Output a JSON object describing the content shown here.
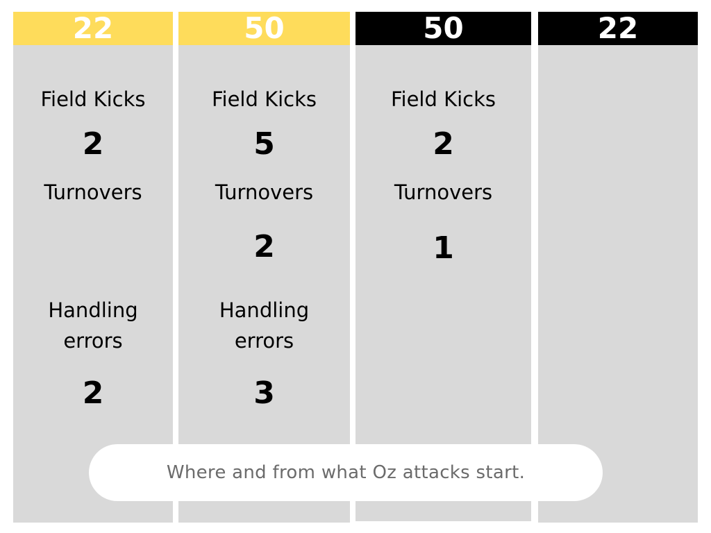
{
  "columns": [
    {
      "header": "22",
      "header_color": "#fedc5b",
      "field_kicks_label": "Field Kicks",
      "field_kicks_value": "2",
      "turnovers_label": "Turnovers",
      "handling_errors_label_line1": "Handling",
      "handling_errors_label_line2": "errors",
      "handling_errors_value": "2"
    },
    {
      "header": "50",
      "header_color": "#fedc5b",
      "field_kicks_label": "Field Kicks",
      "field_kicks_value": "5",
      "turnovers_label": "Turnovers",
      "turnovers_value": "2",
      "handling_errors_label_line1": "Handling",
      "handling_errors_label_line2": "errors",
      "handling_errors_value": "3"
    },
    {
      "header": "50",
      "header_color": "#000000",
      "field_kicks_label": "Field Kicks",
      "field_kicks_value": "2",
      "turnovers_label": "Turnovers",
      "turnovers_value": "1"
    },
    {
      "header": "22",
      "header_color": "#000000"
    }
  ],
  "caption": "Where and from what Oz attacks start."
}
